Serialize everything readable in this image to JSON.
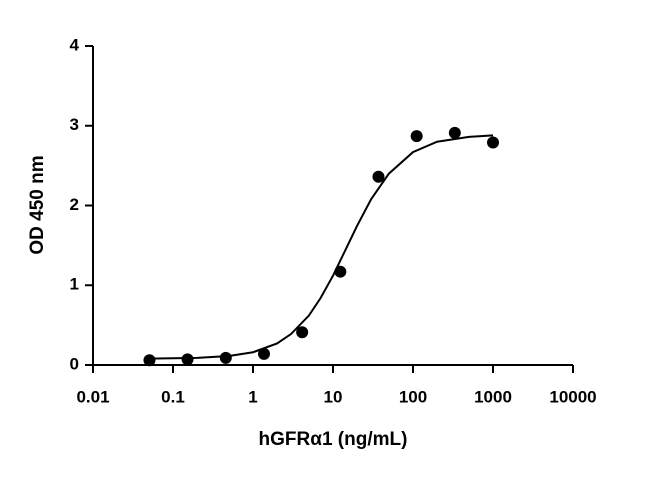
{
  "chart_data": {
    "type": "scatter",
    "x_label": "hGFRα1 (ng/mL)",
    "y_label": "OD 450 nm",
    "x_log": true,
    "xlim": [
      0.01,
      10000
    ],
    "xticks": [
      0.01,
      0.1,
      1,
      10,
      100,
      1000,
      10000
    ],
    "ylim": [
      0,
      4
    ],
    "yticks": [
      0,
      1,
      2,
      3,
      4
    ],
    "series": [
      {
        "type": "scatter",
        "color": "#000000",
        "x": [
          0.0508,
          0.152,
          0.457,
          1.372,
          4.115,
          12.35,
          37.04,
          111.1,
          333.3,
          1000
        ],
        "values": [
          0.06,
          0.07,
          0.09,
          0.14,
          0.41,
          1.17,
          2.36,
          2.87,
          2.91,
          2.79
        ]
      },
      {
        "type": "line",
        "color": "#000000",
        "x": [
          0.05,
          0.1,
          0.2,
          0.5,
          1,
          2,
          3,
          5,
          7,
          10,
          15,
          20,
          30,
          50,
          100,
          200,
          500,
          1000
        ],
        "values": [
          0.08,
          0.084,
          0.09,
          0.113,
          0.16,
          0.27,
          0.39,
          0.62,
          0.84,
          1.12,
          1.485,
          1.745,
          2.08,
          2.4,
          2.67,
          2.8,
          2.86,
          2.88
        ]
      }
    ]
  }
}
